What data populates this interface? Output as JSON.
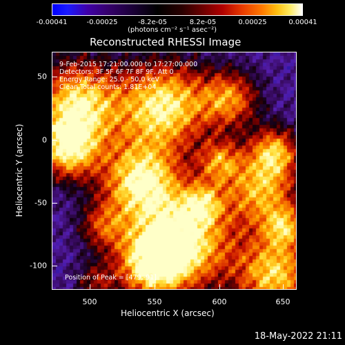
{
  "colorbar": {
    "ticks": [
      "-0.00041",
      "-0.00025",
      "-8.2e-05",
      "8.2e-05",
      "0.00025",
      "0.00041"
    ],
    "units": "(photons cm⁻² s⁻¹ asec⁻²)"
  },
  "title": "Reconstructed RHESSI Image",
  "annotations": [
    "9-Feb-2015 17:21:00.000 to 17:27:00.000",
    "Detectors: 3F 5F 6F 7F 8F 9F, Att 0",
    "Energy Range: 25.0 - 50.0 keV",
    "Clean     Total counts: 1.81E+04"
  ],
  "peak": "Position of Peak = [479,-91]",
  "axes": {
    "xlabel": "Heliocentric X (arcsec)",
    "ylabel": "Heliocentric Y (arcsec)",
    "xticks": [
      "500",
      "550",
      "600",
      "650"
    ],
    "yticks": [
      "50",
      "0",
      "-50",
      "-100"
    ]
  },
  "timestamp": "18-May-2022 21:11",
  "colors": {
    "background": "#000000",
    "foreground": "#ffffff"
  }
}
